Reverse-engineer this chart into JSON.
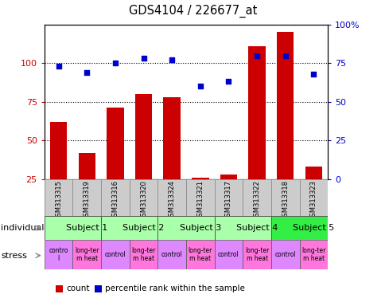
{
  "title": "GDS4104 / 226677_at",
  "samples": [
    "GSM313315",
    "GSM313319",
    "GSM313316",
    "GSM313320",
    "GSM313324",
    "GSM313321",
    "GSM313317",
    "GSM313322",
    "GSM313318",
    "GSM313323"
  ],
  "bar_values": [
    62,
    42,
    71,
    80,
    78,
    26,
    28,
    111,
    120,
    33
  ],
  "scatter_values": [
    73,
    69,
    75,
    78,
    77,
    60,
    63,
    80,
    80,
    68
  ],
  "left_ylim": [
    25,
    125
  ],
  "right_ylim": [
    0,
    100
  ],
  "left_yticks": [
    25,
    50,
    75,
    100
  ],
  "right_yticks": [
    0,
    25,
    50,
    75,
    100
  ],
  "right_yticklabels": [
    "0",
    "25",
    "50",
    "75",
    "100%"
  ],
  "bar_color": "#cc0000",
  "scatter_color": "#0000cc",
  "subjects": [
    {
      "label": "Subject 1",
      "start": 0,
      "end": 2,
      "color": "#aaffaa"
    },
    {
      "label": "Subject 2",
      "start": 2,
      "end": 4,
      "color": "#aaffaa"
    },
    {
      "label": "Subject 3",
      "start": 4,
      "end": 6,
      "color": "#aaffaa"
    },
    {
      "label": "Subject 4",
      "start": 6,
      "end": 8,
      "color": "#aaffaa"
    },
    {
      "label": "Subject 5",
      "start": 8,
      "end": 10,
      "color": "#33ee44"
    }
  ],
  "stress_labels": [
    "contro\nl",
    "long-ter\nm heat",
    "control",
    "long-ter\nm heat",
    "control",
    "long-ter\nm heat",
    "control",
    "long-ter\nm heat",
    "control",
    "long-ter\nm heat"
  ],
  "stress_colors": [
    "#dd88ff",
    "#ff77dd",
    "#dd88ff",
    "#ff77dd",
    "#dd88ff",
    "#ff77dd",
    "#dd88ff",
    "#ff77dd",
    "#dd88ff",
    "#ff77dd"
  ],
  "sample_bg": "#cccccc",
  "individual_label": "individual",
  "stress_label": "stress"
}
